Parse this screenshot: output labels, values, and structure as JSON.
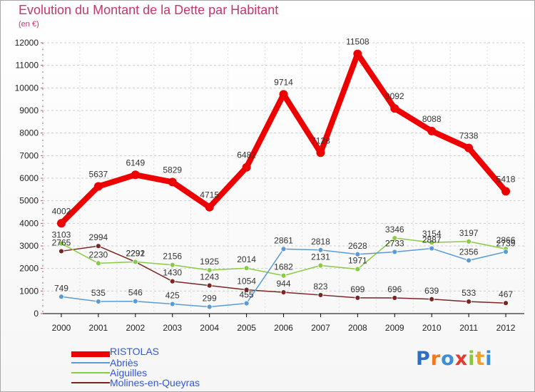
{
  "chart_data": {
    "type": "line",
    "title": "Evolution du Montant de la Dette par Habitant",
    "ylabel": "(en €)",
    "xlabel": "",
    "ylim": [
      0,
      12000
    ],
    "yticks": [
      "0",
      "1000",
      "2000",
      "3000",
      "4000",
      "5000",
      "6000",
      "7000",
      "8000",
      "9000",
      "10000",
      "11000",
      "12000"
    ],
    "categories": [
      "2000",
      "2001",
      "2002",
      "2003",
      "2004",
      "2005",
      "2006",
      "2007",
      "2008",
      "2009",
      "2010",
      "2011",
      "2012"
    ],
    "series": [
      {
        "name": "RISTOLAS",
        "color": "#ee0000",
        "values": [
          4002,
          5637,
          6149,
          5829,
          4715,
          6482,
          9714,
          7128,
          11508,
          9092,
          8088,
          7338,
          5418
        ],
        "labels": [
          "4002",
          "5637",
          "6149",
          "5829",
          "4715",
          "6482",
          "9714",
          "7128",
          "11508",
          "9092",
          "8088",
          "7338",
          "5418"
        ]
      },
      {
        "name": "Abriès",
        "color": "#5a9bd5",
        "values": [
          749,
          535,
          546,
          425,
          299,
          455,
          2861,
          2818,
          2628,
          2733,
          2887,
          2356,
          2739
        ],
        "labels": [
          "749",
          "535",
          "546",
          "425",
          "299",
          "455",
          "2861",
          "2818",
          "2628",
          "2733",
          "2887",
          "2356",
          "2739"
        ]
      },
      {
        "name": "Aiguilles",
        "color": "#88cc44",
        "values": [
          3103,
          2230,
          2292,
          2156,
          1925,
          2014,
          1682,
          2131,
          1971,
          3346,
          3154,
          3197,
          2866
        ],
        "labels": [
          "3103",
          "2230",
          "2292",
          "2156",
          "1925",
          "2014",
          "1682",
          "2131",
          "1971",
          "3346",
          "3154",
          "3197",
          "2866"
        ]
      },
      {
        "name": "Molines-en-Queyras",
        "color": "#7a2424",
        "values": [
          2765,
          2994,
          2291,
          1430,
          1243,
          1054,
          944,
          823,
          699,
          696,
          639,
          533,
          467
        ],
        "labels": [
          "2765",
          "2994",
          "2291",
          "1430",
          "1243",
          "1054",
          "944",
          "823",
          "699",
          "696",
          "639",
          "533",
          "467"
        ]
      }
    ]
  },
  "legend": {
    "items": [
      "RISTOLAS",
      "Abriès",
      "Aiguilles",
      "Molines-en-Queyras"
    ],
    "colors": [
      "#ee0000",
      "#5a9bd5",
      "#88cc44",
      "#7a2424"
    ],
    "text_colors": [
      "#3355dd",
      "#3355dd",
      "#3355dd",
      "#3355dd"
    ]
  },
  "brand": {
    "letters": [
      "P",
      "r",
      "o",
      "x",
      "i",
      "t",
      "i"
    ],
    "colors": [
      "#2f6fc1",
      "#ee7a22",
      "#3b8fd6",
      "#e43b2e",
      "#8cc63f",
      "#f2a024",
      "#3b8fd6"
    ]
  }
}
